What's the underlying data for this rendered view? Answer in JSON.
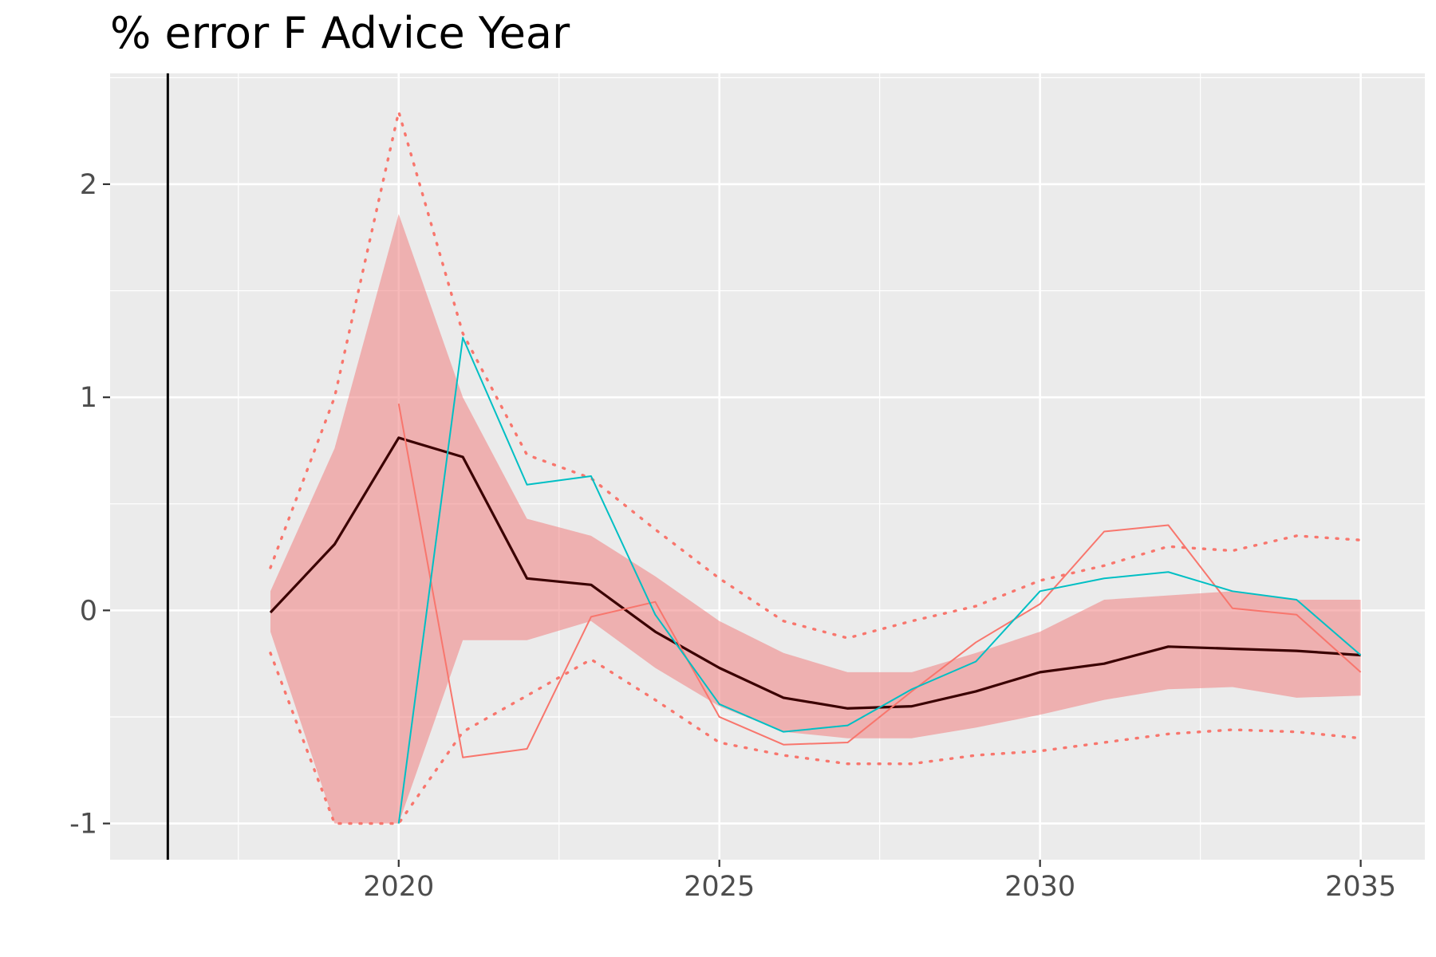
{
  "chart_data": {
    "type": "line",
    "title": "% error F Advice Year",
    "xlabel": "",
    "ylabel": "",
    "xlim": [
      2015.5,
      2036.0
    ],
    "ylim": [
      -1.17,
      2.52
    ],
    "x_ticks": [
      2020,
      2025,
      2030,
      2035
    ],
    "y_ticks": [
      -1,
      0,
      1,
      2
    ],
    "x_tick_labels": [
      "2020",
      "2025",
      "2030",
      "2035"
    ],
    "y_tick_labels": [
      "-1",
      "0",
      "1",
      "2"
    ],
    "grid": true,
    "legend": "none",
    "vline_x": 2016.4,
    "colors": {
      "panel_bg": "#ebebeb",
      "band_fill": "#f08080",
      "median_line": "#3a0000",
      "dotted_bounds": "#f8766d",
      "series_red": "#f8766d",
      "series_teal": "#00bfc4",
      "vline": "#000000"
    },
    "band": {
      "x": [
        2018,
        2019,
        2020,
        2021,
        2022,
        2023,
        2024,
        2025,
        2026,
        2027,
        2028,
        2029,
        2030,
        2031,
        2032,
        2033,
        2034,
        2035
      ],
      "lower": [
        -0.1,
        -1.0,
        -1.0,
        -0.14,
        -0.14,
        -0.05,
        -0.27,
        -0.45,
        -0.57,
        -0.6,
        -0.6,
        -0.55,
        -0.49,
        -0.42,
        -0.37,
        -0.36,
        -0.41,
        -0.4
      ],
      "upper": [
        0.09,
        0.76,
        1.86,
        1.0,
        0.43,
        0.35,
        0.16,
        -0.05,
        -0.2,
        -0.29,
        -0.29,
        -0.2,
        -0.1,
        0.05,
        0.07,
        0.09,
        0.05,
        0.05
      ]
    },
    "dotted_upper": {
      "x": [
        2018,
        2019,
        2020,
        2021,
        2022,
        2023,
        2024,
        2025,
        2026,
        2027,
        2028,
        2029,
        2030,
        2031,
        2032,
        2033,
        2034,
        2035
      ],
      "y": [
        0.2,
        1.0,
        2.34,
        1.3,
        0.73,
        0.62,
        0.38,
        0.15,
        -0.05,
        -0.13,
        -0.05,
        0.02,
        0.14,
        0.21,
        0.3,
        0.28,
        0.35,
        0.33
      ]
    },
    "dotted_lower": {
      "x": [
        2018,
        2019,
        2020,
        2021,
        2022,
        2023,
        2024,
        2025,
        2026,
        2027,
        2028,
        2029,
        2030,
        2031,
        2032,
        2033,
        2034,
        2035
      ],
      "y": [
        -0.2,
        -1.0,
        -1.0,
        -0.57,
        -0.4,
        -0.23,
        -0.42,
        -0.62,
        -0.68,
        -0.72,
        -0.72,
        -0.68,
        -0.66,
        -0.62,
        -0.58,
        -0.56,
        -0.57,
        -0.6
      ]
    },
    "series": [
      {
        "role": "median",
        "x": [
          2018,
          2019,
          2020,
          2021,
          2022,
          2023,
          2024,
          2025,
          2026,
          2027,
          2028,
          2029,
          2030,
          2031,
          2032,
          2033,
          2034,
          2035
        ],
        "values": [
          -0.01,
          0.31,
          0.81,
          0.72,
          0.15,
          0.12,
          -0.1,
          -0.27,
          -0.41,
          -0.46,
          -0.45,
          -0.38,
          -0.29,
          -0.25,
          -0.17,
          -0.18,
          -0.19,
          -0.21
        ]
      },
      {
        "role": "red",
        "x": [
          2020,
          2021,
          2022,
          2023,
          2024,
          2025,
          2026,
          2027,
          2028,
          2029,
          2030,
          2031,
          2032,
          2033,
          2034,
          2035
        ],
        "values": [
          0.97,
          -0.69,
          -0.65,
          -0.03,
          0.04,
          -0.5,
          -0.63,
          -0.62,
          -0.38,
          -0.15,
          0.03,
          0.37,
          0.4,
          0.01,
          -0.02,
          -0.29
        ]
      },
      {
        "role": "teal",
        "x": [
          2020,
          2021,
          2022,
          2023,
          2024,
          2025,
          2026,
          2027,
          2028,
          2029,
          2030,
          2031,
          2032,
          2033,
          2034,
          2035
        ],
        "values": [
          -1.0,
          1.28,
          0.59,
          0.63,
          -0.02,
          -0.44,
          -0.57,
          -0.54,
          -0.37,
          -0.24,
          0.09,
          0.15,
          0.18,
          0.09,
          0.05,
          -0.21
        ]
      }
    ]
  }
}
